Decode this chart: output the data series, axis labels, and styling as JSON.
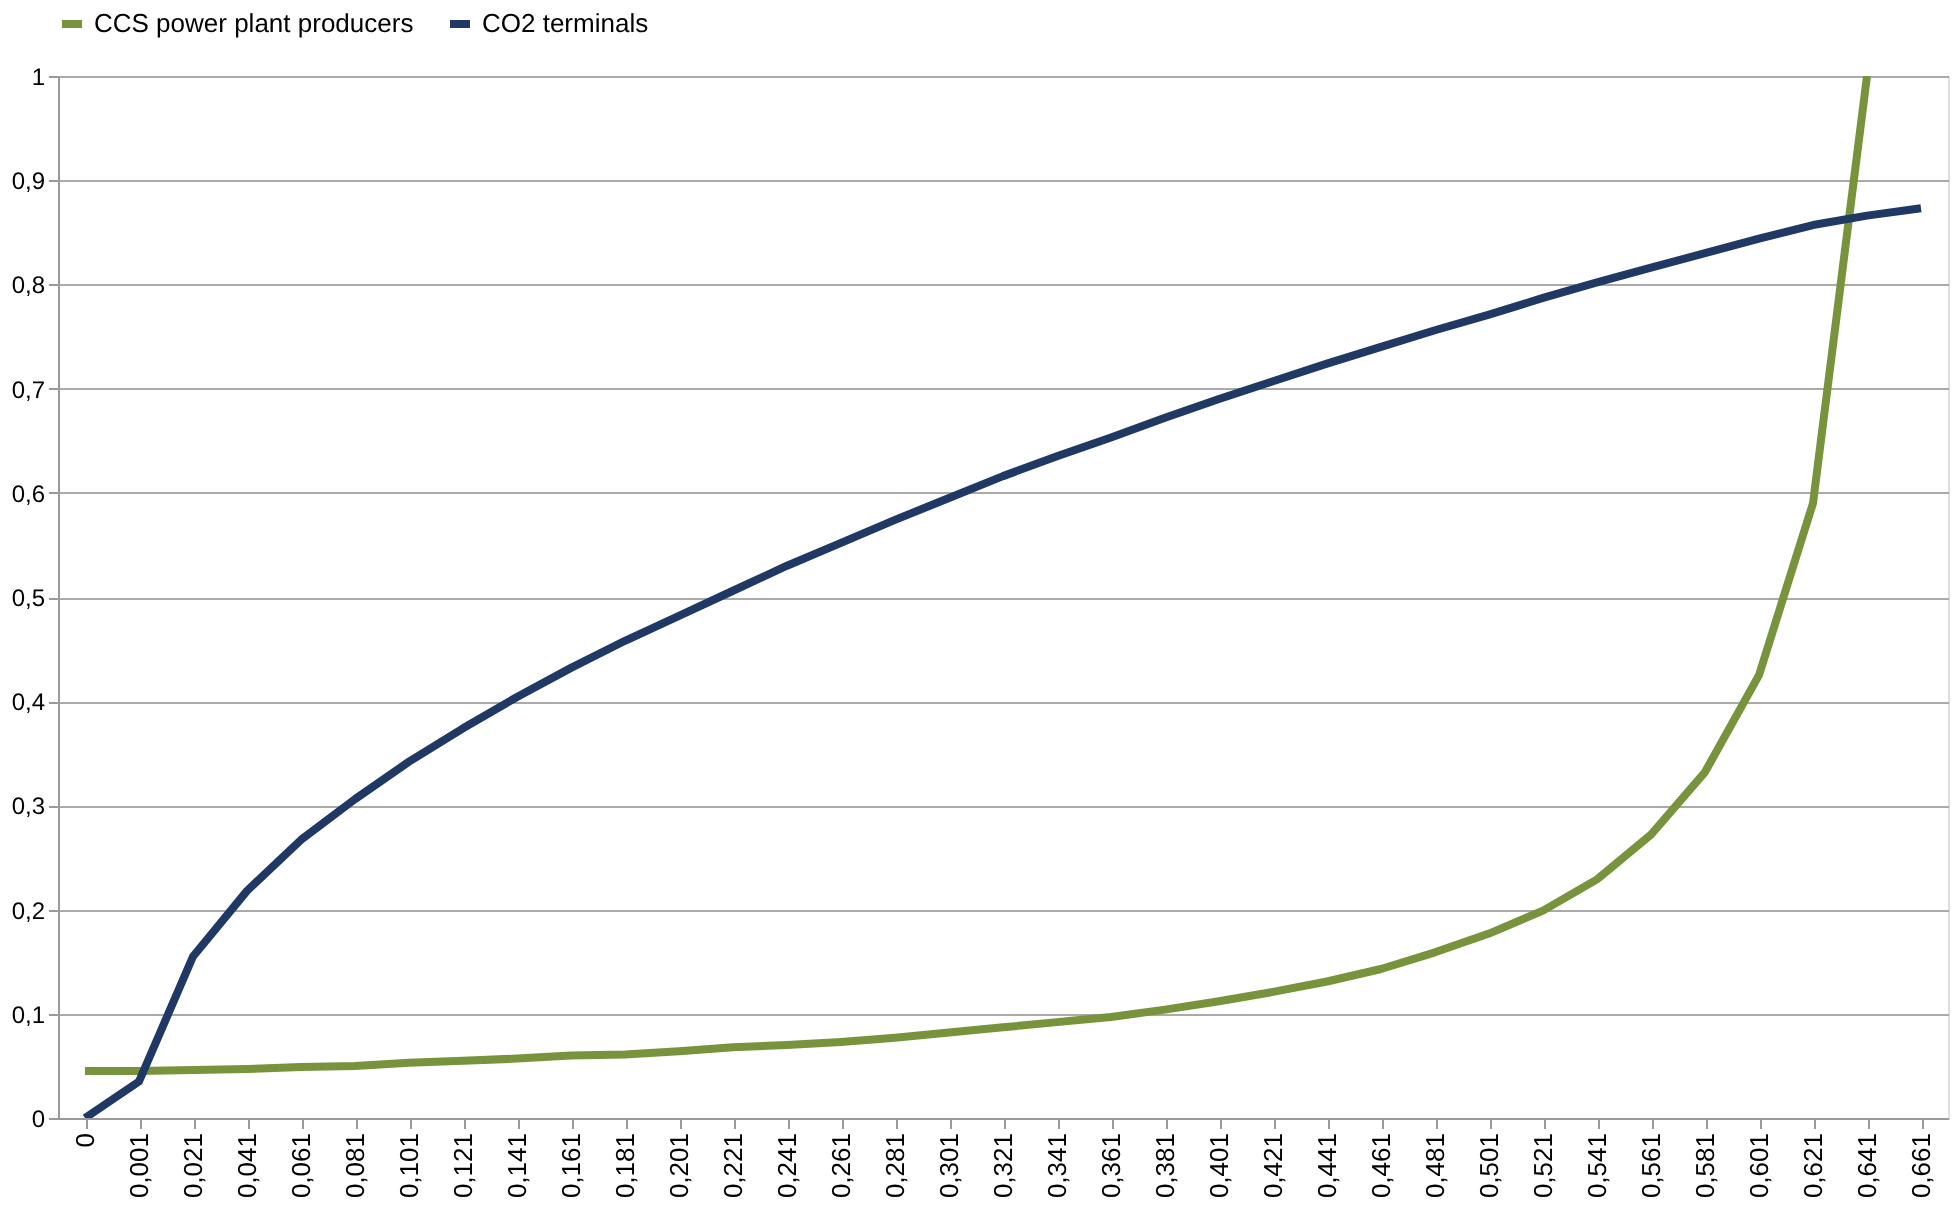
{
  "chart_data": {
    "type": "line",
    "categories": [
      "0",
      "0,001",
      "0,021",
      "0,041",
      "0,061",
      "0,081",
      "0,101",
      "0,121",
      "0,141",
      "0,161",
      "0,181",
      "0,201",
      "0,221",
      "0,241",
      "0,261",
      "0,281",
      "0,301",
      "0,321",
      "0,341",
      "0,361",
      "0,381",
      "0,401",
      "0,421",
      "0,441",
      "0,461",
      "0,481",
      "0,501",
      "0,521",
      "0,541",
      "0,561",
      "0,581",
      "0,601",
      "0,621",
      "0,641",
      "0,661"
    ],
    "series": [
      {
        "name": "CCS power plant producers",
        "color": "#77933c",
        "values": [
          0.045,
          0.045,
          0.046,
          0.047,
          0.049,
          0.05,
          0.053,
          0.055,
          0.057,
          0.06,
          0.061,
          0.064,
          0.068,
          0.07,
          0.073,
          0.077,
          0.082,
          0.087,
          0.092,
          0.097,
          0.104,
          0.112,
          0.121,
          0.131,
          0.143,
          0.159,
          0.177,
          0.199,
          0.229,
          0.272,
          0.332,
          0.425,
          0.59,
          1,
          null
        ]
      },
      {
        "name": "CO2 terminals",
        "color": "#1f3864",
        "values": [
          0,
          0.035,
          0.155,
          0.218,
          0.267,
          0.306,
          0.342,
          0.374,
          0.404,
          0.432,
          0.458,
          0.482,
          0.506,
          0.53,
          0.552,
          0.574,
          0.595,
          0.616,
          0.635,
          0.653,
          0.672,
          0.69,
          0.707,
          0.724,
          0.74,
          0.756,
          0.771,
          0.787,
          0.802,
          0.816,
          0.83,
          0.844,
          0.857,
          0.866,
          0.873
        ]
      }
    ],
    "ylim": [
      0,
      1
    ],
    "yticks": [
      0,
      {
        "value": 0.1,
        "label": "0,1"
      },
      {
        "value": 0.2,
        "label": "0,2"
      },
      {
        "value": 0.3,
        "label": "0,3"
      },
      {
        "value": 0.4,
        "label": "0,4"
      },
      {
        "value": 0.5,
        "label": "0,5"
      },
      {
        "value": 0.6,
        "label": "0,6"
      },
      {
        "value": 0.7,
        "label": "0,7"
      },
      {
        "value": 0.8,
        "label": "0,8"
      },
      {
        "value": 0.9,
        "label": "0,9"
      },
      1
    ],
    "grid": "y",
    "legend": "top",
    "marker": "none",
    "line_style": "solid"
  }
}
